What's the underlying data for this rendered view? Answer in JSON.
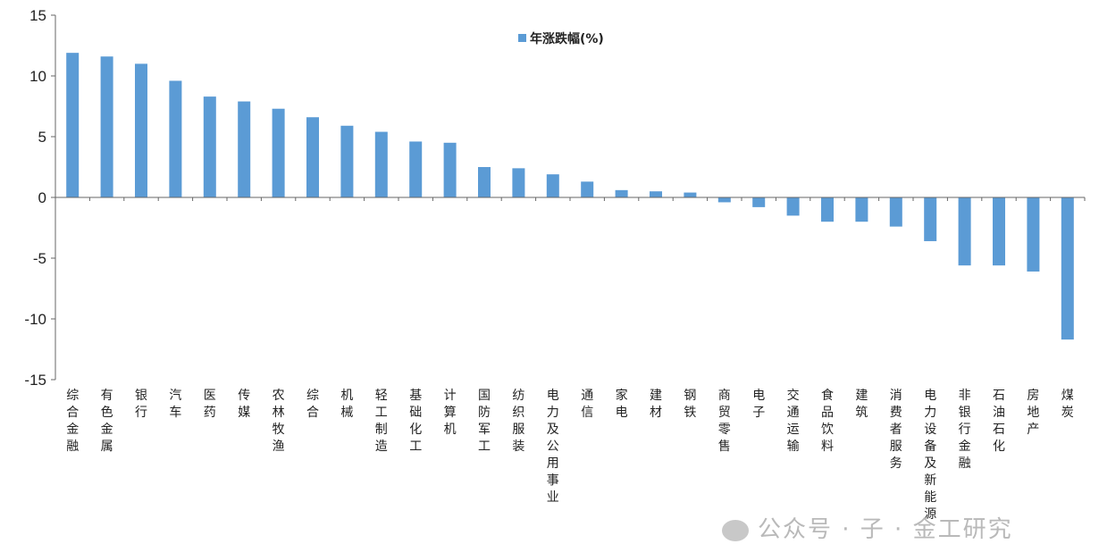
{
  "chart_data": {
    "type": "bar",
    "legend": {
      "label": "年涨跌幅(%)",
      "position": "top-center"
    },
    "ylim": [
      -15,
      15
    ],
    "yticks": [
      15,
      10,
      5,
      0,
      -5,
      -10,
      -15
    ],
    "grid": false,
    "bar_color": "#5b9bd5",
    "categories": [
      "综合金融",
      "有色金属",
      "银行",
      "汽车",
      "医药",
      "传媒",
      "农林牧渔",
      "综合",
      "机械",
      "轻工制造",
      "基础化工",
      "计算机",
      "国防军工",
      "纺织服装",
      "电力及公用事业",
      "通信",
      "家电",
      "建材",
      "钢铁",
      "商贸零售",
      "电子",
      "交通运输",
      "食品饮料",
      "建筑",
      "消费者服务",
      "电力设备及新能源",
      "非银行金融",
      "石油石化",
      "房地产",
      "煤炭"
    ],
    "values": [
      11.9,
      11.6,
      11.0,
      9.6,
      8.3,
      7.9,
      7.3,
      6.6,
      5.9,
      5.4,
      4.6,
      4.5,
      2.5,
      2.4,
      1.9,
      1.3,
      0.6,
      0.5,
      0.4,
      -0.4,
      -0.8,
      -1.5,
      -2.0,
      -2.0,
      -2.4,
      -3.6,
      -5.6,
      -5.6,
      -6.1,
      -11.7
    ]
  },
  "watermark": {
    "text": "公众号 · 子 · 金工研究"
  }
}
